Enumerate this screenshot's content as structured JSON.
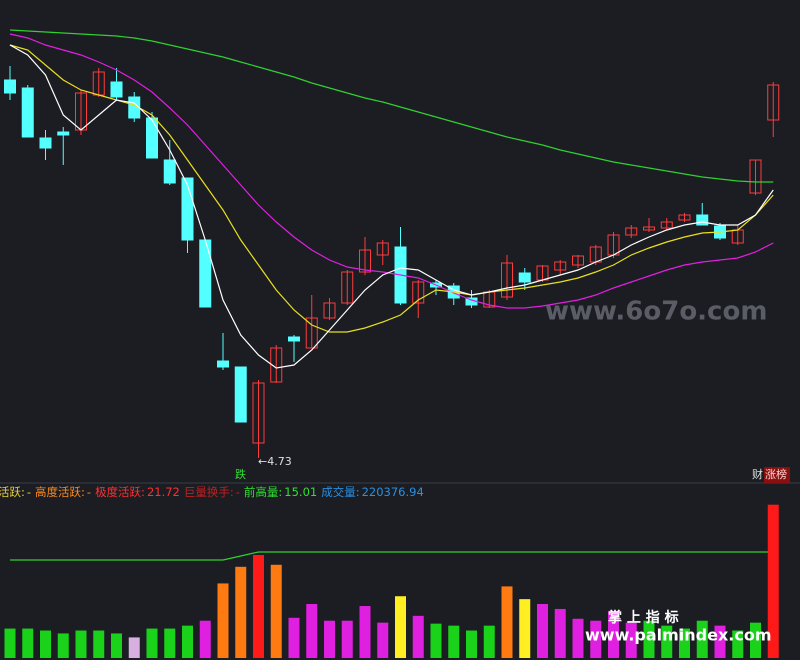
{
  "chart_data": [
    {
      "type": "candlestick",
      "ylim": [
        4.61,
        9.31
      ],
      "up_color": "#ff3c3c",
      "down_color": "#54ffff",
      "open": [
        8.51,
        8.43,
        7.93,
        7.99,
        8.01,
        8.36,
        8.49,
        8.34,
        8.13,
        7.71,
        7.53,
        6.91,
        5.7,
        5.64,
        4.88,
        5.49,
        5.94,
        5.83,
        6.13,
        6.28,
        6.59,
        6.76,
        6.84,
        6.28,
        6.48,
        6.45,
        6.33,
        6.24,
        6.34,
        6.58,
        6.51,
        6.61,
        6.66,
        6.69,
        6.76,
        6.96,
        7.01,
        7.03,
        7.11,
        7.16,
        7.05,
        6.88,
        7.38,
        8.11
      ],
      "high": [
        8.65,
        8.46,
        8.01,
        8.04,
        8.41,
        8.63,
        8.63,
        8.39,
        8.19,
        7.91,
        7.53,
        6.91,
        5.98,
        5.64,
        5.51,
        5.86,
        5.96,
        6.36,
        6.33,
        6.61,
        6.94,
        6.91,
        7.04,
        6.51,
        6.51,
        6.48,
        6.41,
        6.41,
        6.76,
        6.63,
        6.66,
        6.71,
        6.76,
        6.86,
        6.99,
        7.06,
        7.13,
        7.13,
        7.18,
        7.28,
        7.08,
        7.06,
        7.71,
        8.49
      ],
      "low": [
        8.31,
        7.94,
        7.71,
        7.66,
        7.96,
        8.34,
        8.31,
        8.09,
        7.73,
        7.46,
        6.78,
        6.24,
        5.61,
        5.09,
        4.73,
        5.48,
        5.69,
        5.83,
        6.11,
        6.26,
        6.56,
        6.66,
        6.26,
        6.13,
        6.36,
        6.26,
        6.23,
        6.23,
        6.31,
        6.41,
        6.49,
        6.56,
        6.63,
        6.66,
        6.73,
        6.93,
        6.99,
        7.01,
        7.09,
        7.06,
        6.91,
        6.86,
        7.36,
        7.94
      ],
      "close": [
        8.38,
        7.94,
        7.83,
        7.96,
        8.38,
        8.59,
        8.34,
        8.13,
        7.73,
        7.48,
        6.91,
        6.24,
        5.64,
        5.09,
        5.48,
        5.83,
        5.9,
        6.13,
        6.28,
        6.59,
        6.81,
        6.88,
        6.28,
        6.49,
        6.44,
        6.33,
        6.26,
        6.39,
        6.68,
        6.49,
        6.65,
        6.69,
        6.75,
        6.84,
        6.96,
        7.03,
        7.04,
        7.09,
        7.16,
        7.06,
        6.93,
        7.01,
        7.71,
        8.46
      ],
      "lines": [
        {
          "color": "#ffffff",
          "values": [
            8.86,
            8.76,
            8.56,
            8.16,
            8.01,
            8.16,
            8.31,
            8.28,
            8.11,
            7.81,
            7.46,
            6.91,
            6.31,
            5.96,
            5.76,
            5.63,
            5.66,
            5.81,
            6.01,
            6.21,
            6.41,
            6.56,
            6.63,
            6.61,
            6.51,
            6.41,
            6.36,
            6.39,
            6.43,
            6.46,
            6.51,
            6.56,
            6.61,
            6.69,
            6.76,
            6.86,
            6.94,
            7.01,
            7.06,
            7.09,
            7.06,
            7.06,
            7.16,
            7.41
          ]
        },
        {
          "color": "#e8e020",
          "values": [
            8.86,
            8.81,
            8.66,
            8.51,
            8.41,
            8.36,
            8.31,
            8.26,
            8.16,
            7.96,
            7.71,
            7.46,
            7.21,
            6.91,
            6.66,
            6.41,
            6.21,
            6.06,
            5.99,
            5.99,
            6.03,
            6.09,
            6.16,
            6.31,
            6.41,
            6.39,
            6.36,
            6.39,
            6.41,
            6.43,
            6.46,
            6.49,
            6.53,
            6.59,
            6.66,
            6.76,
            6.83,
            6.89,
            6.94,
            6.98,
            6.99,
            7.01,
            7.16,
            7.36
          ]
        },
        {
          "color": "#e020e0",
          "values": [
            8.97,
            8.93,
            8.86,
            8.81,
            8.76,
            8.69,
            8.61,
            8.51,
            8.39,
            8.23,
            8.06,
            7.86,
            7.66,
            7.46,
            7.26,
            7.09,
            6.94,
            6.81,
            6.71,
            6.64,
            6.61,
            6.59,
            6.56,
            6.53,
            6.46,
            6.38,
            6.31,
            6.26,
            6.23,
            6.23,
            6.25,
            6.28,
            6.31,
            6.36,
            6.43,
            6.49,
            6.55,
            6.61,
            6.66,
            6.69,
            6.71,
            6.73,
            6.79,
            6.88
          ]
        },
        {
          "color": "#30d030",
          "values": [
            9.01,
            9.0,
            8.99,
            8.98,
            8.97,
            8.96,
            8.95,
            8.93,
            8.9,
            8.86,
            8.82,
            8.78,
            8.74,
            8.69,
            8.64,
            8.59,
            8.54,
            8.48,
            8.43,
            8.38,
            8.33,
            8.29,
            8.24,
            8.19,
            8.14,
            8.09,
            8.04,
            7.99,
            7.94,
            7.9,
            7.86,
            7.81,
            7.77,
            7.73,
            7.69,
            7.66,
            7.63,
            7.6,
            7.57,
            7.54,
            7.52,
            7.5,
            7.49,
            7.49
          ]
        }
      ],
      "annotation": "←4.73",
      "signal_down": "跌",
      "signal_cai": "财",
      "signal_rank": "涨榜"
    },
    {
      "type": "bar",
      "ylim": [
        0,
        230000
      ],
      "values": [
        42300,
        42300,
        39500,
        35300,
        39500,
        39500,
        35300,
        29600,
        42300,
        42300,
        46500,
        53600,
        107200,
        131100,
        148100,
        134000,
        57800,
        77600,
        53600,
        53600,
        74700,
        50800,
        88800,
        60600,
        49400,
        46500,
        39500,
        46500,
        102900,
        84600,
        77600,
        70500,
        56400,
        53600,
        67700,
        50800,
        53600,
        46500,
        42300,
        53600,
        46500,
        39500,
        50800,
        220376.94
      ],
      "colors": [
        "#19d219",
        "#19d219",
        "#19d219",
        "#19d219",
        "#19d219",
        "#19d219",
        "#19d219",
        "#d8b0e0",
        "#19d219",
        "#19d219",
        "#19d219",
        "#e020e0",
        "#ff7a10",
        "#ff7a10",
        "#ff1a1a",
        "#ff7a10",
        "#e020e0",
        "#e020e0",
        "#e020e0",
        "#e020e0",
        "#e020e0",
        "#e020e0",
        "#ffee22",
        "#e020e0",
        "#19d219",
        "#19d219",
        "#19d219",
        "#19d219",
        "#ff7a10",
        "#ffee22",
        "#e020e0",
        "#e020e0",
        "#e020e0",
        "#e020e0",
        "#e020e0",
        "#e020e0",
        "#19d219",
        "#19d219",
        "#19d219",
        "#19d219",
        "#e020e0",
        "#19d219",
        "#19d219",
        "#ff1a1a"
      ],
      "ref_line": {
        "color": "#30d030",
        "values": [
          140900,
          140900,
          140900,
          140900,
          140900,
          140900,
          140900,
          140900,
          140900,
          140900,
          140900,
          140900,
          140900,
          146600,
          152400,
          152400,
          152400,
          152400,
          152400,
          152400,
          152400,
          152400,
          152400,
          152400,
          152400,
          152400,
          152400,
          152400,
          152400,
          152400,
          152400,
          152400,
          152400,
          152400,
          152400,
          152400,
          152400,
          152400,
          152400,
          152400,
          152400,
          152400,
          152400,
          152400
        ]
      },
      "indicators": [
        {
          "label": "活跃:",
          "value": "-",
          "color": "#e8d040"
        },
        {
          "label": "高度活跃:",
          "value": "-",
          "color": "#ff8a20"
        },
        {
          "label": "极度活跃:",
          "value": 21.72,
          "color": "#ff3030"
        },
        {
          "label": "巨量换手:",
          "value": "-",
          "color": "#c02020"
        },
        {
          "label": "前高量:",
          "value": 15.01,
          "color": "#30e030"
        },
        {
          "label": "成交量:",
          "value": 220376.94,
          "color": "#2a90e0"
        }
      ]
    }
  ],
  "watermarks": {
    "site": "www.6o7o.com",
    "brand": "掌 上 指 标",
    "url": "www.palmindex.com"
  }
}
